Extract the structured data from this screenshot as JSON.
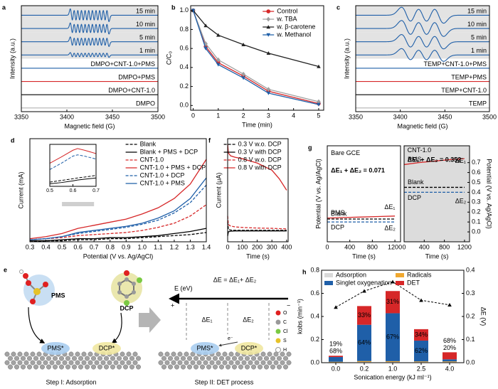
{
  "chart_data": [
    {
      "panel": "a",
      "type": "epr",
      "xlim": [
        3350,
        3500
      ],
      "xticks": [
        3350,
        3400,
        3450,
        3500
      ],
      "xlabel": "Magnetic field (G)",
      "ylabel": "Intensity (a.u.)",
      "background": "#e3e3e3",
      "peaks": [
        3405,
        3409,
        3413,
        3417,
        3421,
        3425,
        3429,
        3433,
        3437,
        3441,
        3445
      ],
      "series": [
        {
          "name": "15 min",
          "color": "#1f5fa8",
          "label_color": "#000000",
          "amplitude": 0.8
        },
        {
          "name": "10 min",
          "color": "#1f5fa8",
          "label_color": "#000000",
          "amplitude": 0.7
        },
        {
          "name": "5 min",
          "color": "#1f5fa8",
          "label_color": "#000000",
          "amplitude": 0.6
        },
        {
          "name": "1 min",
          "color": "#1f5fa8",
          "label_color": "#000000",
          "amplitude": 0.3
        },
        {
          "name": "DMPO+CNT-1.0+PMS",
          "color": "#1f5fa8",
          "label_color": "#1f5fa8",
          "amplitude": 0
        },
        {
          "name": "DMPO+PMS",
          "color": "#d62728",
          "label_color": "#d62728",
          "amplitude": 0
        },
        {
          "name": "DMPO+CNT-1.0",
          "color": "#000000",
          "label_color": "#000000",
          "amplitude": 0
        },
        {
          "name": "DMPO",
          "color": "#b0b0b0",
          "label_color": "#b0b0b0",
          "amplitude": 0
        }
      ]
    },
    {
      "panel": "b",
      "type": "line",
      "x": [
        0,
        0.5,
        1,
        2,
        3,
        5
      ],
      "xlim": [
        -0.1,
        5.2
      ],
      "xticks": [
        0,
        1,
        2,
        3,
        4,
        5
      ],
      "ylim": [
        -0.05,
        1.05
      ],
      "yticks": [
        {
          "value": 0,
          "label": "0.0"
        },
        0.2,
        0.4,
        0.6,
        0.8,
        {
          "value": 1,
          "label": "1.0"
        }
      ],
      "xlabel": "Time (min)",
      "ylabel": "C/C₀",
      "legend": "upper right",
      "series": [
        {
          "name": "Control",
          "color": "#d62728",
          "marker": "circle",
          "values": [
            1.0,
            0.62,
            0.45,
            0.31,
            0.15,
            0.02
          ]
        },
        {
          "name": "w. TBA",
          "color": "#a0a0a0",
          "marker": "diamond",
          "values": [
            1.0,
            0.65,
            0.48,
            0.33,
            0.17,
            0.04
          ]
        },
        {
          "name": "w. β-carotene",
          "color": "#222222",
          "marker": "triangle",
          "values": [
            1.0,
            0.84,
            0.74,
            0.64,
            0.55,
            0.41
          ]
        },
        {
          "name": "w. Methanol",
          "color": "#1f5fa8",
          "marker": "triangle-down",
          "values": [
            1.0,
            0.6,
            0.43,
            0.29,
            0.13,
            0.01
          ]
        }
      ]
    },
    {
      "panel": "c",
      "type": "epr",
      "xlim": [
        3350,
        3500
      ],
      "xticks": [
        3350,
        3400,
        3450,
        3500
      ],
      "xlabel": "Magnetic field (G)",
      "ylabel": "Intensity (a.u.)",
      "background": "#e3e3e3",
      "peaks": [
        3407,
        3425,
        3443
      ],
      "series": [
        {
          "name": "15 min",
          "color": "#1f5fa8",
          "label_color": "#000000",
          "amplitude": 1
        },
        {
          "name": "10 min",
          "color": "#1f5fa8",
          "label_color": "#000000",
          "amplitude": 1
        },
        {
          "name": "5 min",
          "color": "#1f5fa8",
          "label_color": "#000000",
          "amplitude": 0.9
        },
        {
          "name": "1 min",
          "color": "#1f5fa8",
          "label_color": "#000000",
          "amplitude": 0.8
        },
        {
          "name": "TEMP+CNT-1.0+PMS",
          "color": "#1f5fa8",
          "label_color": "#1f5fa8",
          "amplitude": 0
        },
        {
          "name": "TEMP+PMS",
          "color": "#d62728",
          "label_color": "#d62728",
          "amplitude": 0
        },
        {
          "name": "TEMP+CNT-1.0",
          "color": "#000000",
          "label_color": "#000000",
          "amplitude": 0
        },
        {
          "name": "TEMP",
          "color": "#b0b0b0",
          "label_color": "#b0b0b0",
          "amplitude": 0
        }
      ]
    },
    {
      "panel": "d",
      "type": "line",
      "x": [
        0.3,
        0.4,
        0.5,
        0.6,
        0.7,
        0.8,
        0.9,
        1.0,
        1.1,
        1.2,
        1.3,
        1.4
      ],
      "xlim": [
        0.3,
        1.4
      ],
      "xticks": [
        0.3,
        0.4,
        0.5,
        0.6,
        0.7,
        0.8,
        0.9,
        {
          "value": 1,
          "label": "1.0"
        },
        1.1,
        1.2,
        1.3,
        1.4
      ],
      "ylim": [
        0,
        1
      ],
      "xlabel": "Potential (V vs. Ag/AgCl)",
      "ylabel": "Current (mA)",
      "legend": "upper right",
      "series": [
        {
          "name": "Blank",
          "color": "#000000",
          "dash": true,
          "values": [
            0.0,
            0.01,
            0.01,
            0.02,
            0.02,
            0.03,
            0.03,
            0.04,
            0.05,
            0.06,
            0.07,
            0.09
          ]
        },
        {
          "name": "Blank + PMS + DCP",
          "color": "#000000",
          "values": [
            0.01,
            0.01,
            0.02,
            0.03,
            0.03,
            0.04,
            0.04,
            0.05,
            0.06,
            0.08,
            0.1,
            0.13
          ]
        },
        {
          "name": "CNT-1.0",
          "color": "#d62728",
          "dash": true,
          "values": [
            0.02,
            0.03,
            0.04,
            0.06,
            0.07,
            0.08,
            0.09,
            0.11,
            0.14,
            0.18,
            0.25,
            0.36
          ]
        },
        {
          "name": "CNT-1.0 + PMS + DCP",
          "color": "#d62728",
          "values": [
            0.03,
            0.05,
            0.08,
            0.13,
            0.16,
            0.19,
            0.22,
            0.27,
            0.33,
            0.42,
            0.56,
            0.8
          ]
        },
        {
          "name": "CNT-1.0 + DCP",
          "color": "#1f5fa8",
          "dash": true,
          "values": [
            0.02,
            0.03,
            0.05,
            0.08,
            0.1,
            0.12,
            0.14,
            0.17,
            0.21,
            0.28,
            0.38,
            0.55
          ]
        },
        {
          "name": "CNT-1.0 + PMS",
          "color": "#1f5fa8",
          "values": [
            0.02,
            0.03,
            0.05,
            0.09,
            0.11,
            0.13,
            0.15,
            0.18,
            0.23,
            0.3,
            0.42,
            0.62
          ]
        }
      ]
    },
    {
      "type": "line",
      "inset": true,
      "background": "#ffffff",
      "x": [
        0.5,
        0.55,
        0.6,
        0.62,
        0.65,
        0.7
      ],
      "xlim": [
        0.5,
        0.7
      ],
      "xticks": [
        0.5,
        0.6,
        0.7
      ],
      "ylim": [
        0,
        1
      ],
      "series": [
        {
          "color": "#d62728",
          "values": [
            0.55,
            0.7,
            0.86,
            0.9,
            0.86,
            0.78
          ]
        },
        {
          "color": "#1f5fa8",
          "dash": true,
          "values": [
            0.4,
            0.55,
            0.72,
            0.75,
            0.72,
            0.65
          ]
        },
        {
          "color": "#000000",
          "dash": true,
          "values": [
            0.1,
            0.14,
            0.18,
            0.2,
            0.22,
            0.26
          ]
        },
        {
          "color": "#000000",
          "values": [
            0.06,
            0.09,
            0.13,
            0.15,
            0.17,
            0.2
          ]
        }
      ]
    },
    {
      "panel": "f",
      "type": "line",
      "x": [
        0,
        5,
        20,
        50,
        100,
        200,
        300,
        350,
        400
      ],
      "xlim": [
        0,
        410
      ],
      "xticks": [
        0,
        100,
        200,
        300,
        400
      ],
      "ylim": [
        -4,
        32
      ],
      "xlabel": "Time (s)",
      "ylabel": "Current (μA)",
      "legend": "upper right",
      "series": [
        {
          "name": "0.3 V w.o. DCP",
          "color": "#000000",
          "dash": true,
          "values": [
            3,
            0.3,
            0.1,
            0,
            0,
            0,
            0,
            0,
            0
          ]
        },
        {
          "name": "0.3 V with DCP",
          "color": "#000000",
          "values": [
            -2,
            -0.5,
            -0.3,
            -0.2,
            -0.2,
            -0.2,
            -0.2,
            -0.2,
            -0.2
          ]
        },
        {
          "name": "0.8 V w.o. DCP",
          "color": "#d62728",
          "dash": true,
          "values": [
            5,
            2,
            1.5,
            1.2,
            1,
            0.8,
            0.7,
            0.6,
            0.5
          ]
        },
        {
          "name": "0.8 V with DCP",
          "color": "#d62728",
          "values": [
            30,
            27,
            26,
            25.5,
            25,
            23.5,
            21,
            18,
            14
          ]
        }
      ]
    },
    {
      "panel": "g",
      "type": "line",
      "x": [
        0,
        300,
        600,
        900,
        1200
      ],
      "xlim": [
        0,
        1300
      ],
      "xticks": [
        0,
        400,
        800,
        1200
      ],
      "ylim": [
        -0.1,
        0.87
      ],
      "xlabel": "Time (s)",
      "ylabel": "Potential (V vs. Ag/AgCl)",
      "legend": "inline",
      "annotations": [
        "Bare GCE",
        "ΔE₁ + ΔE₂ = 0.071",
        "ΔE₁",
        "ΔE₂"
      ],
      "series": [
        {
          "name": "PMS",
          "color": "#d62728",
          "values": [
            0.14,
            0.145,
            0.15,
            0.155,
            0.16
          ]
        },
        {
          "name": "Blank",
          "color": "#000000",
          "dash": true,
          "values": [
            0.13,
            0.13,
            0.13,
            0.13,
            0.13
          ]
        },
        {
          "name": "DCP",
          "color": "#1f5fa8",
          "dash": true,
          "values": [
            0.1,
            0.1,
            0.1,
            0.1,
            0.1
          ]
        }
      ]
    },
    {
      "type": "line",
      "background": "#dcdcdc",
      "x": [
        0,
        300,
        600,
        900,
        1200
      ],
      "xlim": [
        0,
        1300
      ],
      "xticks": [
        0,
        400,
        800,
        1200
      ],
      "y2lim": [
        -0.1,
        0.87
      ],
      "y2ticks": [
        {
          "value": 0,
          "label": "0.0"
        },
        0.1,
        0.2,
        0.3,
        0.4,
        0.5,
        0.6,
        0.7
      ],
      "xlabel": "Time (s)",
      "y2label": "Potential (V vs. Ag/AgCl)",
      "legend": "inline",
      "annotations": [
        "CNT-1.0",
        "ΔE₁ + ΔE₂ = 0.352",
        "ΔE₁",
        "ΔE₂"
      ],
      "series": [
        {
          "name": "PMS",
          "color": "#d62728",
          "axis": "y2",
          "values": [
            0.68,
            0.7,
            0.715,
            0.73,
            0.74
          ]
        },
        {
          "name": "Blank",
          "color": "#000000",
          "dash": true,
          "axis": "y2",
          "values": [
            0.45,
            0.45,
            0.45,
            0.45,
            0.45
          ]
        },
        {
          "name": "DCP",
          "color": "#1f5fa8",
          "dash": true,
          "axis": "y2",
          "values": [
            0.4,
            0.4,
            0.4,
            0.4,
            0.4
          ]
        }
      ]
    },
    {
      "panel": "h",
      "type": "bar",
      "categories": [
        "0.0",
        "0.2",
        "1.0",
        "2.5",
        "4.0"
      ],
      "ylim": [
        0,
        0.8
      ],
      "yticks": [
        {
          "value": 0,
          "label": "0.0"
        },
        0.2,
        0.4,
        0.6,
        0.8
      ],
      "y2lim": [
        0,
        0.4
      ],
      "y2ticks": [
        {
          "value": 0,
          "label": "0.0"
        },
        0.1,
        0.2,
        0.3,
        0.4
      ],
      "xlabel": "Sonication energy (kJ ml⁻¹)",
      "ylabel": "kobs (min⁻¹)",
      "y2label": "ΔE (V)",
      "legend": "upper left",
      "series": [
        {
          "name": "Adsorption",
          "color": "#d9d9d9",
          "values": [
            0.004,
            0.006,
            0.006,
            0.005,
            0.005
          ]
        },
        {
          "name": "Radicals",
          "color": "#f0a830",
          "values": [
            0.004,
            0.008,
            0.007,
            0.006,
            0.006
          ]
        },
        {
          "name": "Singlet oxygenation",
          "color": "#1f5fa8",
          "values": [
            0.041,
            0.314,
            0.415,
            0.18,
            0.018
          ],
          "percent_labels": [
            "68%",
            "64%",
            "67%",
            "62%",
            "20%"
          ]
        },
        {
          "name": "DET",
          "color": "#d62728",
          "values": [
            0.011,
            0.162,
            0.192,
            0.099,
            0.061
          ],
          "percent_labels": [
            "19%",
            "33%",
            "31%",
            "34%",
            "68%"
          ]
        },
        {
          "axis": "y2",
          "color": "#000000",
          "values": [
            0.24,
            0.31,
            0.35,
            0.27,
            0.25
          ]
        }
      ]
    }
  ],
  "diagram": {
    "panel": "e",
    "energy_axis": "E (eV)",
    "delta_e": "ΔE = ΔE₁+ ΔE₂",
    "plus": "+",
    "minus": "−",
    "delta_e1": "ΔE₁",
    "delta_e2": "ΔE₂",
    "electron": "e⁻",
    "molecules": [
      "PMS",
      "DCP"
    ],
    "adsorbed": [
      "PMS*",
      "DCP*"
    ],
    "steps": [
      "Step I: Adsorption",
      "Step II: DET process"
    ],
    "atoms": [
      "O",
      "C",
      "Cl",
      "S",
      "H"
    ]
  }
}
